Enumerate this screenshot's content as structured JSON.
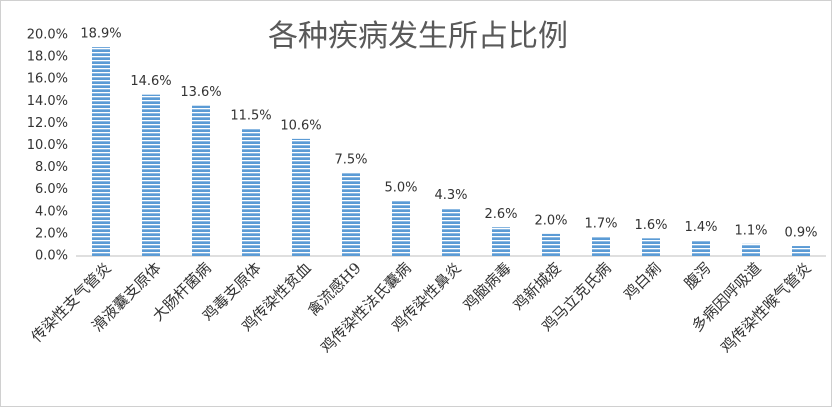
{
  "chart_data": {
    "type": "bar",
    "title": "各种疾病发生所占比例",
    "categories": [
      "传染性支气管炎",
      "滑液囊支原体",
      "大肠杆菌病",
      "鸡毒支原体",
      "鸡传染性贫血",
      "禽流感H9",
      "鸡传染性法氏囊病",
      "鸡传染性鼻炎",
      "鸡脑病毒",
      "鸡新城疫",
      "鸡马立克氏病",
      "鸡白痢",
      "腹泻",
      "多病因呼吸道",
      "鸡传染性喉气管炎"
    ],
    "values": [
      18.9,
      14.6,
      13.6,
      11.5,
      10.6,
      7.5,
      5.0,
      4.3,
      2.6,
      2.0,
      1.7,
      1.6,
      1.4,
      1.1,
      0.9
    ],
    "value_labels": [
      "18.9%",
      "14.6%",
      "13.6%",
      "11.5%",
      "10.6%",
      "7.5%",
      "5.0%",
      "4.3%",
      "2.6%",
      "2.0%",
      "1.7%",
      "1.6%",
      "1.4%",
      "1.1%",
      "0.9%"
    ],
    "color": "#5b9bd5",
    "ylim": [
      0,
      20
    ],
    "yticks": [
      {
        "value": 0,
        "label": "0.0%"
      },
      {
        "value": 2,
        "label": "2.0%"
      },
      {
        "value": 4,
        "label": "4.0%"
      },
      {
        "value": 6,
        "label": "6.0%"
      },
      {
        "value": 8,
        "label": "8.0%"
      },
      {
        "value": 10,
        "label": "10.0%"
      },
      {
        "value": 12,
        "label": "12.0%"
      },
      {
        "value": 14,
        "label": "14.0%"
      },
      {
        "value": 16,
        "label": "16.0%"
      },
      {
        "value": 18,
        "label": "18.0%"
      },
      {
        "value": 20,
        "label": "20.0%"
      }
    ],
    "grid": false
  }
}
